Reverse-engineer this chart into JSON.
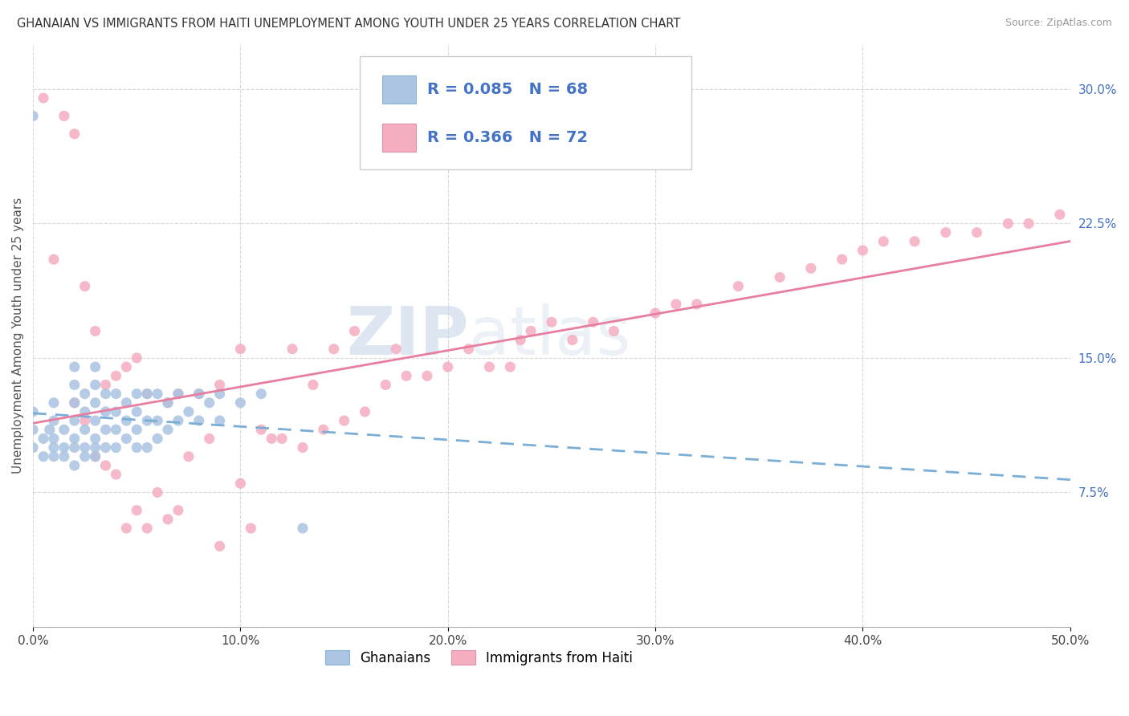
{
  "title": "GHANAIAN VS IMMIGRANTS FROM HAITI UNEMPLOYMENT AMONG YOUTH UNDER 25 YEARS CORRELATION CHART",
  "source": "Source: ZipAtlas.com",
  "ylabel": "Unemployment Among Youth under 25 years",
  "xlim": [
    0.0,
    0.5
  ],
  "ylim": [
    0.0,
    0.325
  ],
  "xticks": [
    0.0,
    0.1,
    0.2,
    0.3,
    0.4,
    0.5
  ],
  "xticklabels": [
    "0.0%",
    "10.0%",
    "20.0%",
    "30.0%",
    "40.0%",
    "50.0%"
  ],
  "ytick_right_labels": [
    "7.5%",
    "15.0%",
    "22.5%",
    "30.0%"
  ],
  "ytick_right_values": [
    0.075,
    0.15,
    0.225,
    0.3
  ],
  "ghanaian_color": "#aac4e2",
  "haiti_color": "#f5adc0",
  "ghanaian_line_color": "#7aaed6",
  "haiti_line_color": "#e87fa0",
  "ghanaian_R": 0.085,
  "ghanaian_N": 68,
  "haiti_R": 0.366,
  "haiti_N": 72,
  "legend_label1": "Ghanaians",
  "legend_label2": "Immigrants from Haiti",
  "watermark_zip": "ZIP",
  "watermark_atlas": "atlas",
  "ghanaian_scatter_x": [
    0.0,
    0.0,
    0.0,
    0.0,
    0.005,
    0.005,
    0.008,
    0.01,
    0.01,
    0.01,
    0.01,
    0.01,
    0.015,
    0.015,
    0.015,
    0.02,
    0.02,
    0.02,
    0.02,
    0.02,
    0.02,
    0.02,
    0.025,
    0.025,
    0.025,
    0.025,
    0.025,
    0.03,
    0.03,
    0.03,
    0.03,
    0.03,
    0.03,
    0.03,
    0.035,
    0.035,
    0.035,
    0.035,
    0.04,
    0.04,
    0.04,
    0.04,
    0.045,
    0.045,
    0.045,
    0.05,
    0.05,
    0.05,
    0.05,
    0.055,
    0.055,
    0.055,
    0.06,
    0.06,
    0.06,
    0.065,
    0.065,
    0.07,
    0.07,
    0.075,
    0.08,
    0.08,
    0.085,
    0.09,
    0.09,
    0.1,
    0.11,
    0.13
  ],
  "ghanaian_scatter_y": [
    0.1,
    0.11,
    0.12,
    0.285,
    0.095,
    0.105,
    0.11,
    0.095,
    0.1,
    0.105,
    0.115,
    0.125,
    0.095,
    0.1,
    0.11,
    0.09,
    0.1,
    0.105,
    0.115,
    0.125,
    0.135,
    0.145,
    0.095,
    0.1,
    0.11,
    0.12,
    0.13,
    0.095,
    0.1,
    0.105,
    0.115,
    0.125,
    0.135,
    0.145,
    0.1,
    0.11,
    0.12,
    0.13,
    0.1,
    0.11,
    0.12,
    0.13,
    0.105,
    0.115,
    0.125,
    0.1,
    0.11,
    0.12,
    0.13,
    0.1,
    0.115,
    0.13,
    0.105,
    0.115,
    0.13,
    0.11,
    0.125,
    0.115,
    0.13,
    0.12,
    0.115,
    0.13,
    0.125,
    0.115,
    0.13,
    0.125,
    0.13,
    0.055
  ],
  "haiti_scatter_x": [
    0.005,
    0.01,
    0.015,
    0.02,
    0.02,
    0.025,
    0.025,
    0.03,
    0.03,
    0.035,
    0.035,
    0.04,
    0.04,
    0.045,
    0.045,
    0.05,
    0.05,
    0.055,
    0.055,
    0.06,
    0.065,
    0.065,
    0.07,
    0.07,
    0.075,
    0.08,
    0.085,
    0.09,
    0.09,
    0.1,
    0.1,
    0.105,
    0.11,
    0.115,
    0.12,
    0.125,
    0.13,
    0.135,
    0.14,
    0.145,
    0.15,
    0.155,
    0.16,
    0.17,
    0.175,
    0.18,
    0.19,
    0.2,
    0.21,
    0.22,
    0.23,
    0.235,
    0.24,
    0.25,
    0.26,
    0.27,
    0.28,
    0.3,
    0.31,
    0.32,
    0.34,
    0.36,
    0.375,
    0.39,
    0.4,
    0.41,
    0.425,
    0.44,
    0.455,
    0.47,
    0.48,
    0.495
  ],
  "haiti_scatter_y": [
    0.295,
    0.205,
    0.285,
    0.125,
    0.275,
    0.115,
    0.19,
    0.095,
    0.165,
    0.09,
    0.135,
    0.085,
    0.14,
    0.055,
    0.145,
    0.065,
    0.15,
    0.055,
    0.13,
    0.075,
    0.06,
    0.125,
    0.065,
    0.13,
    0.095,
    0.13,
    0.105,
    0.045,
    0.135,
    0.08,
    0.155,
    0.055,
    0.11,
    0.105,
    0.105,
    0.155,
    0.1,
    0.135,
    0.11,
    0.155,
    0.115,
    0.165,
    0.12,
    0.135,
    0.155,
    0.14,
    0.14,
    0.145,
    0.155,
    0.145,
    0.145,
    0.16,
    0.165,
    0.17,
    0.16,
    0.17,
    0.165,
    0.175,
    0.18,
    0.18,
    0.19,
    0.195,
    0.2,
    0.205,
    0.21,
    0.215,
    0.215,
    0.22,
    0.22,
    0.225,
    0.225,
    0.23
  ]
}
